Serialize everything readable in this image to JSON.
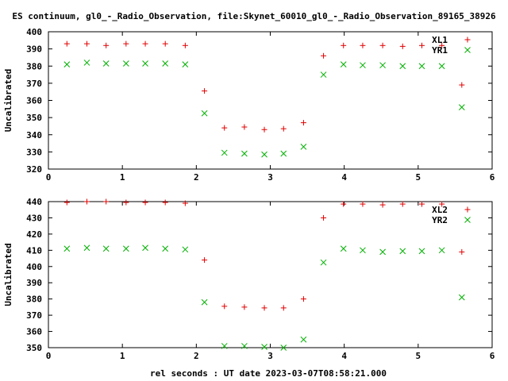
{
  "title": "ES continuum, gl0_-_Radio_Observation, file:Skynet_60010_gl0_-_Radio_Observation_89165_38926",
  "xlabel": "rel seconds : UT date 2023-03-07T08:58:21.000",
  "colors": {
    "series1": "#e00000",
    "series2": "#00b000",
    "frame": "#000000"
  },
  "chart_data": [
    {
      "type": "scatter",
      "ylabel": "Uncalibrated",
      "xlim": [
        0,
        6
      ],
      "ylim": [
        320,
        400
      ],
      "xticks": [
        0,
        1,
        2,
        3,
        4,
        5,
        6
      ],
      "yticks": [
        320,
        330,
        340,
        350,
        360,
        370,
        380,
        390,
        400
      ],
      "legend_position": "top-right",
      "series": [
        {
          "name": "XL1",
          "marker": "plus",
          "x": [
            0.25,
            0.52,
            0.78,
            1.05,
            1.31,
            1.58,
            1.85,
            2.11,
            2.38,
            2.65,
            2.92,
            3.18,
            3.45,
            3.72,
            3.99,
            4.25,
            4.52,
            4.79,
            5.05,
            5.32,
            5.59
          ],
          "y": [
            393,
            393,
            392,
            393,
            393,
            393,
            392,
            365.5,
            344,
            344.5,
            343,
            343.5,
            347,
            386,
            392,
            392,
            392,
            391.5,
            392,
            392,
            369
          ]
        },
        {
          "name": "YR1",
          "marker": "cross",
          "x": [
            0.25,
            0.52,
            0.78,
            1.05,
            1.31,
            1.58,
            1.85,
            2.11,
            2.38,
            2.65,
            2.92,
            3.18,
            3.45,
            3.72,
            3.99,
            4.25,
            4.52,
            4.79,
            5.05,
            5.32,
            5.59
          ],
          "y": [
            381,
            382,
            381.5,
            381.5,
            381.5,
            381.5,
            381,
            352.5,
            329.5,
            329,
            328.5,
            329,
            333,
            375,
            381,
            380.5,
            380.5,
            380,
            380,
            380,
            356
          ]
        }
      ]
    },
    {
      "type": "scatter",
      "ylabel": "Uncalibrated",
      "xlim": [
        0,
        6
      ],
      "ylim": [
        350,
        440
      ],
      "xticks": [
        0,
        1,
        2,
        3,
        4,
        5,
        6
      ],
      "yticks": [
        350,
        360,
        370,
        380,
        390,
        400,
        410,
        420,
        430,
        440
      ],
      "legend_position": "top-right",
      "series": [
        {
          "name": "XL2",
          "marker": "plus",
          "x": [
            0.25,
            0.52,
            0.78,
            1.05,
            1.31,
            1.58,
            1.85,
            2.11,
            2.38,
            2.65,
            2.92,
            3.18,
            3.45,
            3.72,
            3.99,
            4.25,
            4.52,
            4.79,
            5.05,
            5.32,
            5.59
          ],
          "y": [
            439.5,
            440,
            440,
            439.5,
            439.5,
            439.5,
            439,
            404,
            375.5,
            375,
            374.5,
            374.5,
            380,
            430,
            438.5,
            438.5,
            438,
            438.5,
            438.5,
            438.5,
            409
          ]
        },
        {
          "name": "YR2",
          "marker": "cross",
          "x": [
            0.25,
            0.52,
            0.78,
            1.05,
            1.31,
            1.58,
            1.85,
            2.11,
            2.38,
            2.65,
            2.92,
            3.18,
            3.45,
            3.72,
            3.99,
            4.25,
            4.52,
            4.79,
            5.05,
            5.32,
            5.59
          ],
          "y": [
            411,
            411.5,
            411,
            411,
            411.5,
            411,
            410.5,
            378,
            351,
            351,
            350.5,
            350,
            355,
            402.5,
            411,
            410,
            409,
            409.5,
            409.5,
            410,
            381
          ]
        }
      ]
    }
  ]
}
